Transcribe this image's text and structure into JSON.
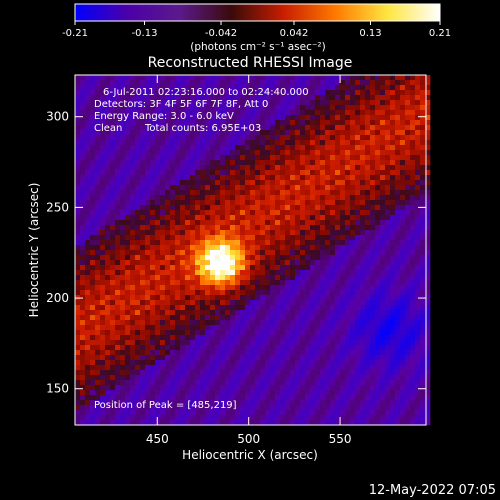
{
  "chart_data": {
    "type": "heatmap",
    "title": "Reconstructed RHESSI Image",
    "xlabel": "Heliocentric X (arcsec)",
    "ylabel": "Heliocentric Y (arcsec)",
    "xlim": [
      405,
      597
    ],
    "ylim": [
      130,
      323
    ],
    "x_ticks": [
      450,
      500,
      550
    ],
    "y_ticks": [
      150,
      200,
      250,
      300
    ],
    "colorbar": {
      "min": -0.21,
      "max": 0.21,
      "ticks": [
        "-0.21",
        "-0.13",
        "-0.042",
        "0.042",
        "0.13",
        "0.21"
      ],
      "unit_label": "(photons cm⁻² s⁻¹ asec⁻²)",
      "colors": [
        "#0000ff",
        "#4b00a8",
        "#5a1a8c",
        "#3a0a0a",
        "#c81e00",
        "#ff7a00",
        "#ffe640",
        "#ffffff"
      ]
    },
    "annotations": {
      "time_range": "6-Jul-2011 02:23:16.000 to 02:24:40.000",
      "detectors": "Detectors: 3F 4F 5F 6F 7F 8F, Att 0",
      "energy_range": "Energy Range: 3.0 - 6.0 keV",
      "clean_label": "Clean",
      "total_counts": "Total counts: 6.95E+03",
      "peak": "Position of Peak = [485,219]"
    },
    "peak_position": [
      485,
      219
    ],
    "footer_date": "12-May-2022 07:05"
  }
}
